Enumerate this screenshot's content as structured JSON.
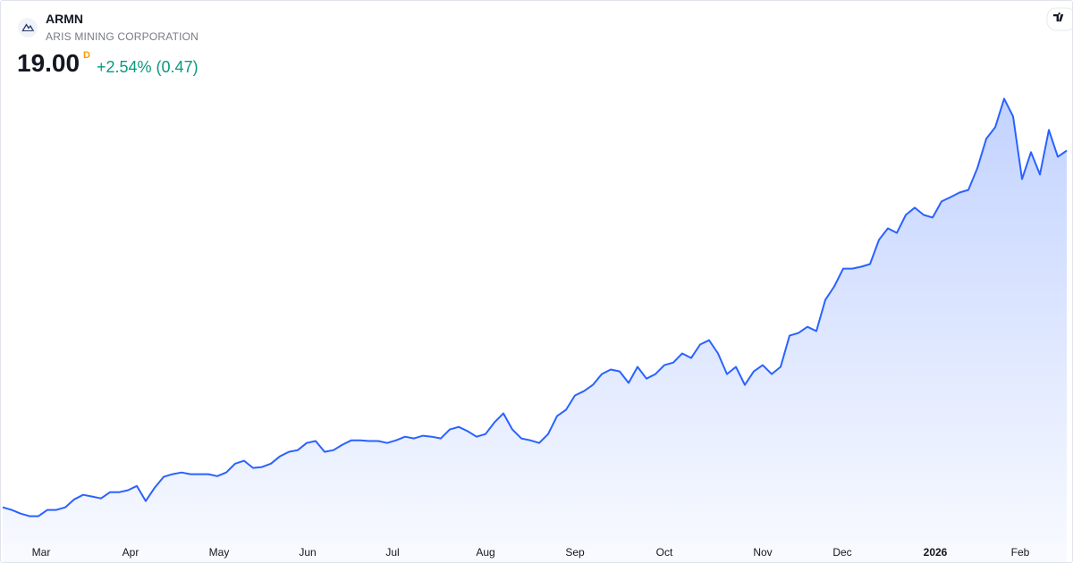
{
  "chart_data": {
    "type": "area",
    "title": "ARMN",
    "subtitle": "ARIS MINING CORPORATION",
    "price": "19.00",
    "interval": "D",
    "change": "+2.54% (0.47)",
    "color": "#2962ff",
    "values": [
      4.14,
      4.03,
      3.88,
      3.77,
      3.77,
      4.03,
      4.03,
      4.14,
      4.47,
      4.66,
      4.59,
      4.51,
      4.77,
      4.77,
      4.85,
      5.03,
      4.4,
      4.96,
      5.41,
      5.52,
      5.59,
      5.52,
      5.52,
      5.52,
      5.44,
      5.59,
      5.96,
      6.08,
      5.78,
      5.82,
      5.96,
      6.26,
      6.45,
      6.52,
      6.82,
      6.9,
      6.45,
      6.52,
      6.75,
      6.93,
      6.93,
      6.9,
      6.9,
      6.82,
      6.93,
      7.08,
      7.01,
      7.12,
      7.08,
      7.01,
      7.38,
      7.49,
      7.31,
      7.08,
      7.19,
      7.68,
      8.05,
      7.38,
      7.01,
      6.93,
      6.82,
      7.19,
      7.94,
      8.2,
      8.8,
      8.98,
      9.24,
      9.69,
      9.88,
      9.8,
      9.32,
      9.99,
      9.5,
      9.69,
      10.06,
      10.17,
      10.55,
      10.36,
      10.92,
      11.1,
      10.55,
      9.69,
      9.99,
      9.24,
      9.8,
      10.06,
      9.69,
      9.99,
      11.29,
      11.4,
      11.66,
      11.48,
      12.78,
      13.34,
      14.08,
      14.08,
      14.16,
      14.27,
      15.28,
      15.76,
      15.57,
      16.32,
      16.62,
      16.32,
      16.21,
      16.88,
      17.06,
      17.25,
      17.36,
      18.26,
      19.49,
      19.97,
      21.16,
      20.42,
      17.81,
      18.93,
      18.0,
      19.86,
      18.74,
      19.0
    ],
    "ylim": [
      2.9,
      23.0
    ],
    "xlim": [
      0,
      119
    ],
    "xticks": [
      {
        "value": 4.3,
        "label": "Mar"
      },
      {
        "value": 14.3,
        "label": "Apr"
      },
      {
        "value": 24.2,
        "label": "May"
      },
      {
        "value": 34.1,
        "label": "Jun"
      },
      {
        "value": 43.6,
        "label": "Jul"
      },
      {
        "value": 54,
        "label": "Aug"
      },
      {
        "value": 64,
        "label": "Sep"
      },
      {
        "value": 74,
        "label": "Oct"
      },
      {
        "value": 85,
        "label": "Nov"
      },
      {
        "value": 93.9,
        "label": "Dec"
      },
      {
        "value": 104.3,
        "label": "2026"
      },
      {
        "value": 113.8,
        "label": "Feb"
      }
    ]
  }
}
